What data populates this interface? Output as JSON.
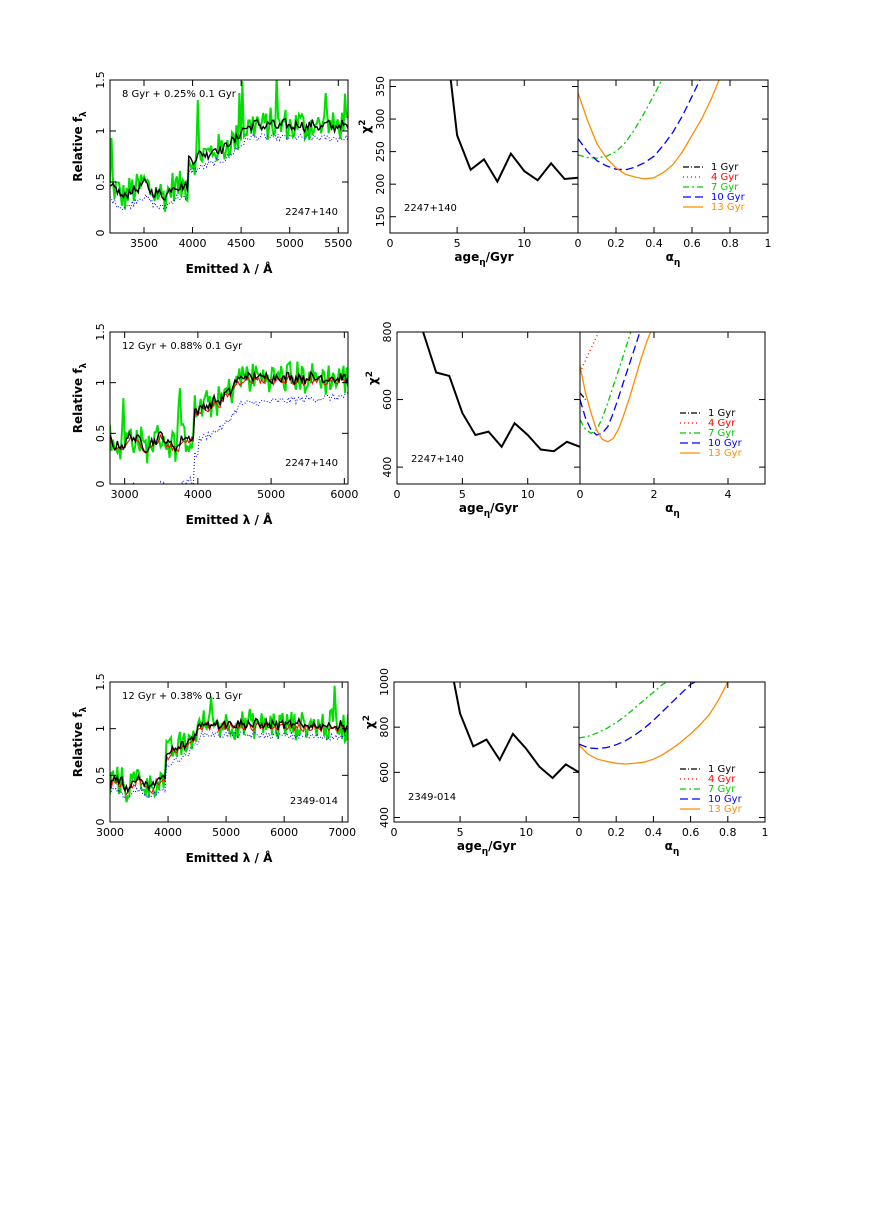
{
  "colors": {
    "model_black": "#000000",
    "observed_green": "#00e000",
    "model_blue_dotted": "#0000ff",
    "model_red": "#ff0000",
    "curve_1gyr": "#000000",
    "curve_4gyr": "#ff0000",
    "curve_7gyr": "#00cc00",
    "curve_10gyr": "#0000ff",
    "curve_13gyr": "#ff8c00"
  },
  "chart_data": [
    {
      "type": "line",
      "row": 0,
      "panel": "spectrum",
      "annotation": "8 Gyr  + 0.25% 0.1 Gyr",
      "object": "2247+140",
      "xlabel": "Emitted λ / Å",
      "ylabel": "Relative f",
      "ylabel_sub": "λ",
      "xlim": [
        3150,
        5600
      ],
      "ylim": [
        0,
        1.5
      ],
      "xticks": [
        3500,
        4000,
        4500,
        5000,
        5500
      ],
      "yticks": [
        0,
        0.5,
        1,
        1.5
      ],
      "yticklabels": [
        "0",
        "0.5",
        "1",
        "1.5"
      ],
      "series_visual": [
        "green",
        "blue_dotted",
        "black"
      ]
    },
    {
      "type": "line",
      "row": 0,
      "panel": "chi2_age",
      "object": "2247+140",
      "xlabel": "age",
      "xlabel_sub": "η",
      "xlabel_tail": "/Gyr",
      "ylabel": "χ",
      "ylabel_sup": "2",
      "xlim": [
        0,
        14
      ],
      "ylim": [
        125,
        360
      ],
      "xticks": [
        0,
        5,
        10
      ],
      "yticks": [
        150,
        200,
        250,
        300,
        350
      ],
      "x": [
        4.5,
        5,
        6,
        7,
        8,
        9,
        10,
        11,
        12,
        13,
        14
      ],
      "y": [
        365,
        275,
        222,
        238,
        204,
        247,
        220,
        206,
        232,
        208,
        210
      ]
    },
    {
      "type": "line",
      "row": 0,
      "panel": "chi2_alpha",
      "xlabel": "α",
      "xlabel_sub": "η",
      "xlim": [
        0,
        1
      ],
      "ylim": [
        125,
        360
      ],
      "xticks": [
        0,
        0.2,
        0.4,
        0.6,
        0.8,
        1
      ],
      "legend": [
        "1 Gyr",
        "4 Gyr",
        "7 Gyr",
        "10 Gyr",
        "13 Gyr"
      ],
      "series": [
        {
          "name": "7 Gyr",
          "x": [
            0,
            0.05,
            0.1,
            0.15,
            0.2,
            0.25,
            0.3,
            0.35,
            0.4,
            0.45
          ],
          "y": [
            245,
            241,
            240,
            243,
            250,
            264,
            285,
            310,
            337,
            365
          ]
        },
        {
          "name": "10 Gyr",
          "x": [
            0,
            0.05,
            0.1,
            0.15,
            0.2,
            0.25,
            0.3,
            0.35,
            0.4,
            0.45,
            0.5,
            0.55,
            0.6,
            0.65
          ],
          "y": [
            270,
            250,
            236,
            228,
            223,
            222,
            226,
            233,
            243,
            260,
            280,
            305,
            335,
            365
          ]
        },
        {
          "name": "13 Gyr",
          "x": [
            0,
            0.05,
            0.1,
            0.15,
            0.2,
            0.25,
            0.3,
            0.35,
            0.4,
            0.45,
            0.5,
            0.55,
            0.6,
            0.65,
            0.7,
            0.75
          ],
          "y": [
            340,
            298,
            262,
            240,
            225,
            215,
            211,
            208,
            210,
            218,
            230,
            250,
            275,
            300,
            330,
            365
          ]
        }
      ]
    },
    {
      "type": "line",
      "row": 1,
      "panel": "spectrum",
      "annotation": "12 Gyr + 0.88% 0.1 Gyr",
      "object": "2247+140",
      "xlabel": "Emitted λ / Å",
      "ylabel": "Relative f",
      "ylabel_sub": "λ",
      "xlim": [
        2800,
        6050
      ],
      "ylim": [
        0,
        1.5
      ],
      "xticks": [
        3000,
        4000,
        5000,
        6000
      ],
      "yticks": [
        0,
        0.5,
        1,
        1.5
      ],
      "yticklabels": [
        "0",
        "0.5",
        "1",
        "1.5"
      ],
      "series_visual": [
        "green",
        "blue_dotted",
        "red",
        "black"
      ]
    },
    {
      "type": "line",
      "row": 1,
      "panel": "chi2_age",
      "object": "2247+140",
      "xlabel": "age",
      "xlabel_sub": "η",
      "xlabel_tail": "/Gyr",
      "ylabel": "χ",
      "ylabel_sup": "2",
      "xlim": [
        0,
        14
      ],
      "ylim": [
        350,
        800
      ],
      "xticks": [
        0,
        5,
        10
      ],
      "yticks": [
        400,
        600,
        800
      ],
      "x": [
        2,
        3,
        4,
        5,
        6,
        7,
        8,
        9,
        10,
        11,
        12,
        13,
        14
      ],
      "y": [
        800,
        680,
        670,
        560,
        495,
        505,
        460,
        530,
        495,
        452,
        447,
        475,
        460
      ]
    },
    {
      "type": "line",
      "row": 1,
      "panel": "chi2_alpha",
      "xlabel": "α",
      "xlabel_sub": "η",
      "xlim": [
        0,
        5
      ],
      "ylim": [
        350,
        800
      ],
      "xticks": [
        0,
        2,
        4
      ],
      "legend": [
        "1 Gyr",
        "4 Gyr",
        "7 Gyr",
        "10 Gyr",
        "13 Gyr"
      ],
      "series": [
        {
          "name": "1 Gyr",
          "x": [
            0,
            0.15
          ],
          "y": [
            620,
            600
          ]
        },
        {
          "name": "4 Gyr",
          "x": [
            0,
            0.1,
            0.25,
            0.4,
            0.55
          ],
          "y": [
            680,
            705,
            740,
            775,
            810
          ]
        },
        {
          "name": "7 Gyr",
          "x": [
            0,
            0.15,
            0.3,
            0.45,
            0.6,
            0.75,
            0.9,
            1.05,
            1.2,
            1.4
          ],
          "y": [
            540,
            512,
            500,
            510,
            545,
            590,
            640,
            690,
            740,
            810
          ]
        },
        {
          "name": "10 Gyr",
          "x": [
            0,
            0.15,
            0.3,
            0.45,
            0.6,
            0.75,
            0.9,
            1.05,
            1.2,
            1.35,
            1.5,
            1.65
          ],
          "y": [
            600,
            545,
            510,
            495,
            500,
            520,
            560,
            610,
            660,
            710,
            760,
            810
          ]
        },
        {
          "name": "13 Gyr",
          "x": [
            0,
            0.15,
            0.3,
            0.45,
            0.6,
            0.75,
            0.9,
            1.05,
            1.2,
            1.35,
            1.5,
            1.65,
            1.8,
            1.95
          ],
          "y": [
            700,
            620,
            560,
            510,
            482,
            475,
            485,
            515,
            560,
            610,
            665,
            720,
            770,
            810
          ]
        }
      ]
    },
    {
      "type": "line",
      "row": 2,
      "panel": "spectrum",
      "annotation": "12 Gyr + 0.38% 0.1 Gyr",
      "object": "2349-014",
      "xlabel": "Emitted λ / Å",
      "ylabel": "Relative f",
      "ylabel_sub": "λ",
      "xlim": [
        3000,
        7100
      ],
      "ylim": [
        0,
        1.5
      ],
      "xticks": [
        3000,
        4000,
        5000,
        6000,
        7000
      ],
      "yticks": [
        0,
        0.5,
        1,
        1.5
      ],
      "yticklabels": [
        "0",
        "0.5",
        "1",
        "1.5"
      ],
      "series_visual": [
        "green",
        "blue_dotted",
        "red",
        "black"
      ]
    },
    {
      "type": "line",
      "row": 2,
      "panel": "chi2_age",
      "object": "2349-014",
      "xlabel": "age",
      "xlabel_sub": "η",
      "xlabel_tail": "/Gyr",
      "ylabel": "χ",
      "ylabel_sup": "2",
      "xlim": [
        0,
        14
      ],
      "ylim": [
        380,
        1000
      ],
      "xticks": [
        0,
        5,
        10
      ],
      "yticks": [
        400,
        600,
        800,
        1000
      ],
      "x": [
        4.5,
        5,
        6,
        7,
        8,
        9,
        10,
        11,
        12,
        13,
        14
      ],
      "y": [
        1010,
        860,
        715,
        745,
        655,
        770,
        705,
        625,
        575,
        635,
        600
      ]
    },
    {
      "type": "line",
      "row": 2,
      "panel": "chi2_alpha",
      "xlabel": "α",
      "xlabel_sub": "η",
      "xlim": [
        0,
        1
      ],
      "ylim": [
        380,
        1000
      ],
      "xticks": [
        0,
        0.2,
        0.4,
        0.6,
        0.8,
        1
      ],
      "legend": [
        "1 Gyr",
        "4 Gyr",
        "7 Gyr",
        "10 Gyr",
        "13 Gyr"
      ],
      "series": [
        {
          "name": "7 Gyr",
          "x": [
            0,
            0.05,
            0.1,
            0.15,
            0.2,
            0.25,
            0.3,
            0.35,
            0.4,
            0.45,
            0.5
          ],
          "y": [
            752,
            760,
            775,
            795,
            820,
            850,
            885,
            920,
            955,
            990,
            1010
          ]
        },
        {
          "name": "10 Gyr",
          "x": [
            0,
            0.05,
            0.1,
            0.15,
            0.2,
            0.25,
            0.3,
            0.35,
            0.4,
            0.45,
            0.5,
            0.55,
            0.6,
            0.65
          ],
          "y": [
            725,
            708,
            705,
            710,
            722,
            740,
            765,
            795,
            830,
            870,
            910,
            950,
            990,
            1010
          ]
        },
        {
          "name": "13 Gyr",
          "x": [
            0,
            0.05,
            0.1,
            0.15,
            0.2,
            0.25,
            0.3,
            0.35,
            0.4,
            0.45,
            0.5,
            0.55,
            0.6,
            0.65,
            0.7,
            0.75,
            0.8
          ],
          "y": [
            720,
            680,
            658,
            648,
            640,
            637,
            640,
            645,
            658,
            678,
            705,
            735,
            770,
            810,
            855,
            920,
            1000
          ]
        }
      ]
    }
  ]
}
